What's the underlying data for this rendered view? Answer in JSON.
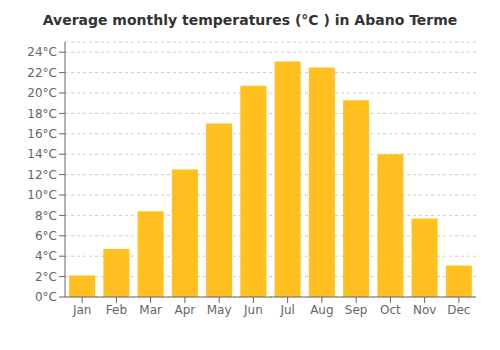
{
  "chart_data": {
    "type": "bar",
    "title": "Average monthly temperatures (°C ) in Abano Terme",
    "categories": [
      "Jan",
      "Feb",
      "Mar",
      "Apr",
      "May",
      "Jun",
      "Jul",
      "Aug",
      "Sep",
      "Oct",
      "Nov",
      "Dec"
    ],
    "values": [
      2.1,
      4.7,
      8.4,
      12.5,
      17.0,
      20.7,
      23.1,
      22.5,
      19.3,
      14.0,
      7.7,
      3.1
    ],
    "color": "#FFC020",
    "ylim": [
      0,
      25
    ],
    "yticks": [
      {
        "value": 0,
        "label": "0°C"
      },
      {
        "value": 2,
        "label": "2°C"
      },
      {
        "value": 4,
        "label": "4°C"
      },
      {
        "value": 6,
        "label": "6°C"
      },
      {
        "value": 8,
        "label": "8°C"
      },
      {
        "value": 10,
        "label": "10°C"
      },
      {
        "value": 12,
        "label": "12°C"
      },
      {
        "value": 14,
        "label": "14°C"
      },
      {
        "value": 16,
        "label": "16°C"
      },
      {
        "value": 18,
        "label": "18°C"
      },
      {
        "value": 20,
        "label": "20°C"
      },
      {
        "value": 22,
        "label": "22°C"
      },
      {
        "value": 24,
        "label": "24°C"
      }
    ],
    "grid": true
  }
}
